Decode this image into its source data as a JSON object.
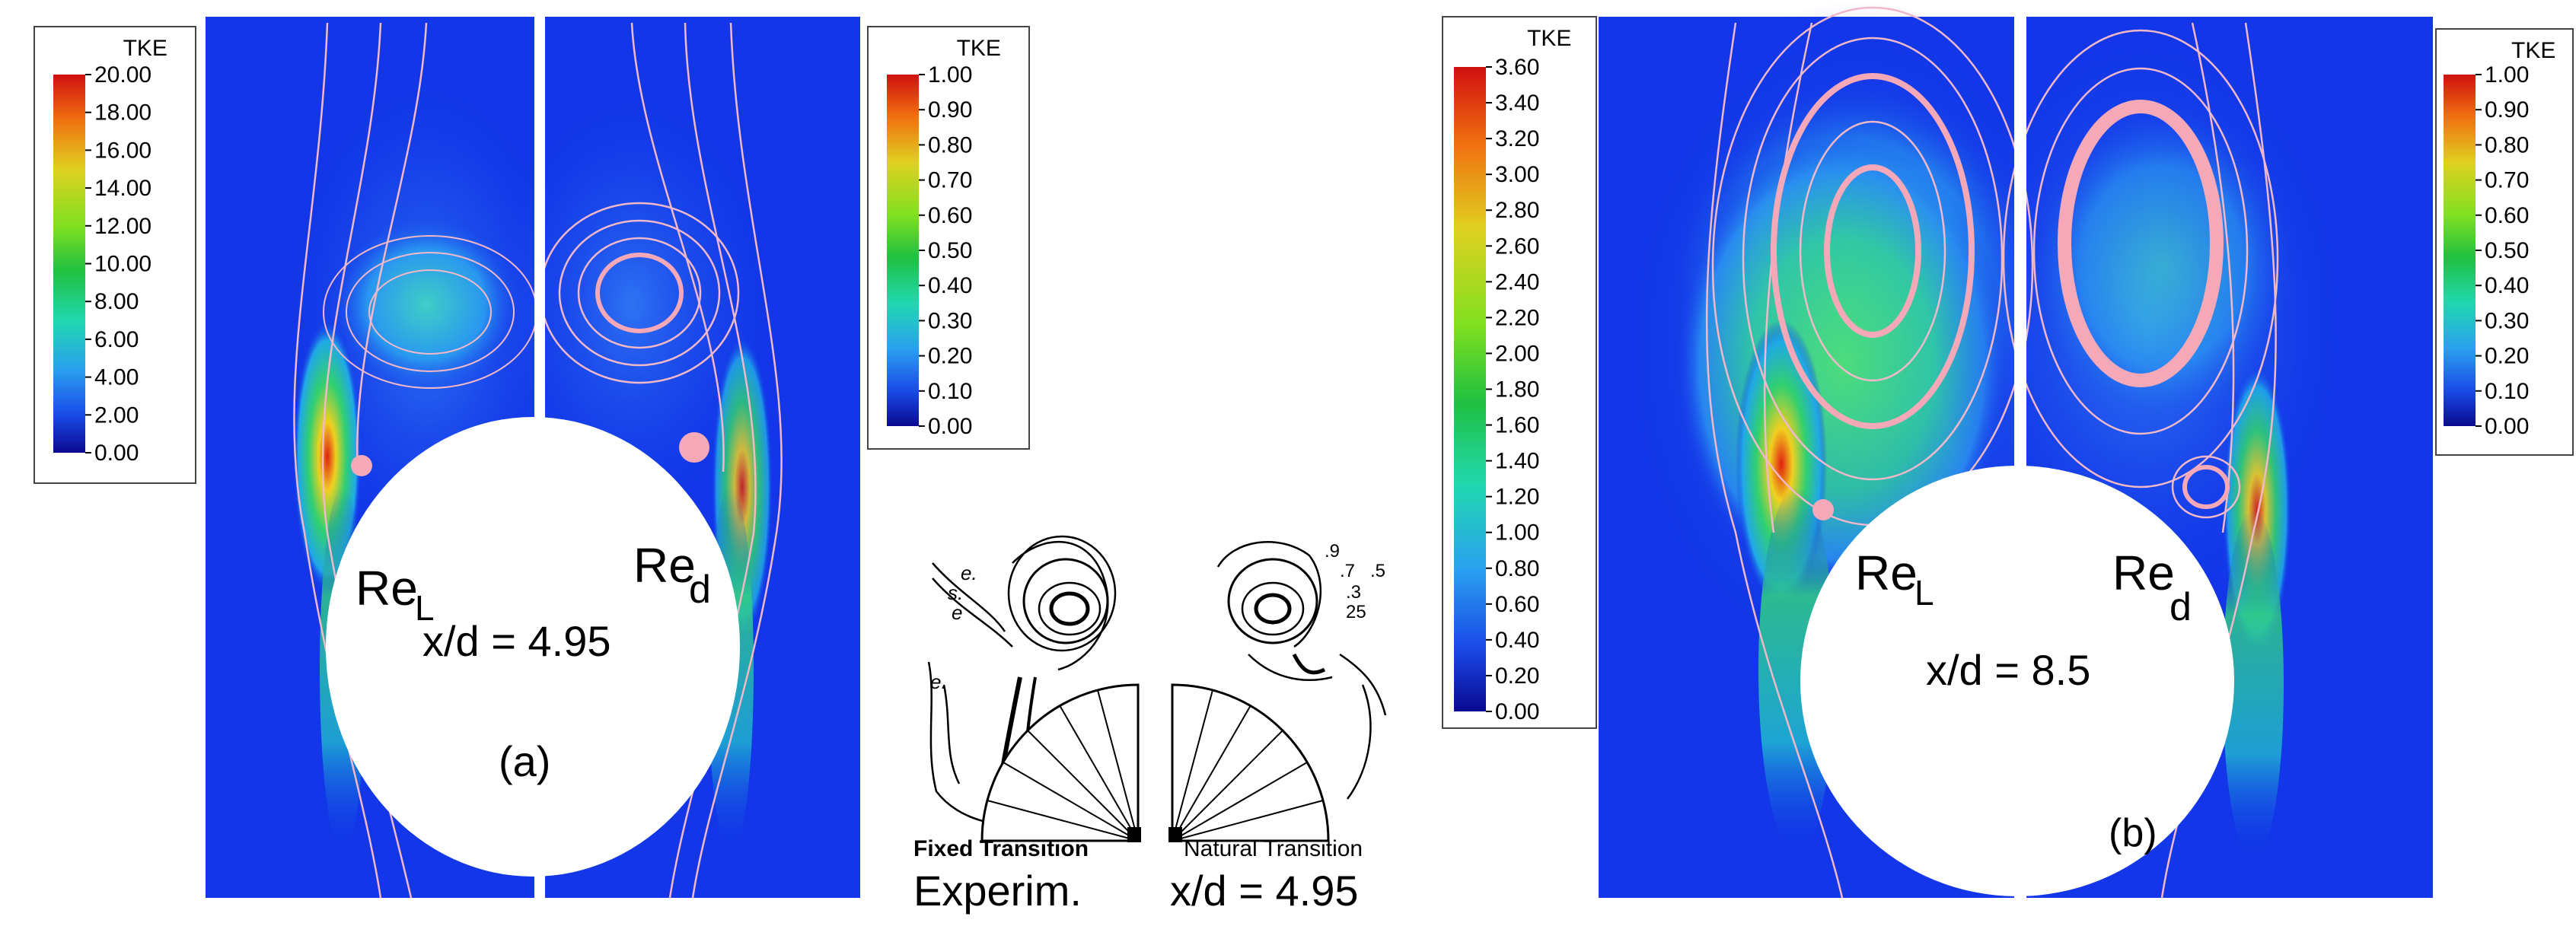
{
  "panel_a": {
    "re_left": "Re",
    "re_left_sub": "L",
    "re_right": "Re",
    "re_right_sub": "d",
    "position": "x/d = 4.95",
    "tag": "(a)"
  },
  "panel_b": {
    "re_left": "Re",
    "re_left_sub": "L",
    "re_right": "Re",
    "re_right_sub": "d",
    "position": "x/d = 8.5",
    "tag": "(b)"
  },
  "experiment": {
    "left_caption": "Fixed Transition",
    "right_caption": "Natural Transition",
    "label": "Experim.",
    "position": "x/d = 4.95",
    "contour_labels_left": [
      "e.",
      "s.",
      "e",
      "e."
    ],
    "contour_labels_right": [
      ".9",
      ".7",
      ".5",
      ".3",
      "25"
    ]
  },
  "colorbars": [
    {
      "id": "cb1",
      "title": "TKE",
      "ticks": [
        "20.00",
        "18.00",
        "16.00",
        "14.00",
        "12.00",
        "10.00",
        "8.00",
        "6.00",
        "4.00",
        "2.00",
        "0.00"
      ]
    },
    {
      "id": "cb2",
      "title": "TKE",
      "ticks": [
        "1.00",
        "0.90",
        "0.80",
        "0.70",
        "0.60",
        "0.50",
        "0.40",
        "0.30",
        "0.20",
        "0.10",
        "0.00"
      ]
    },
    {
      "id": "cb3",
      "title": "TKE",
      "ticks": [
        "3.60",
        "3.40",
        "3.20",
        "3.00",
        "2.80",
        "2.60",
        "2.40",
        "2.20",
        "2.00",
        "1.80",
        "1.60",
        "1.40",
        "1.20",
        "1.00",
        "0.80",
        "0.60",
        "0.40",
        "0.20",
        "0.00"
      ]
    },
    {
      "id": "cb4",
      "title": "TKE",
      "ticks": [
        "1.00",
        "0.90",
        "0.80",
        "0.70",
        "0.60",
        "0.50",
        "0.40",
        "0.30",
        "0.20",
        "0.10",
        "0.00"
      ]
    }
  ],
  "colors": {
    "field_blue": "#1236e8",
    "streamline": "#f0b8c8",
    "vortex_pink": "#f4a8b8",
    "low": "#0a12a0",
    "high": "#d01010"
  }
}
